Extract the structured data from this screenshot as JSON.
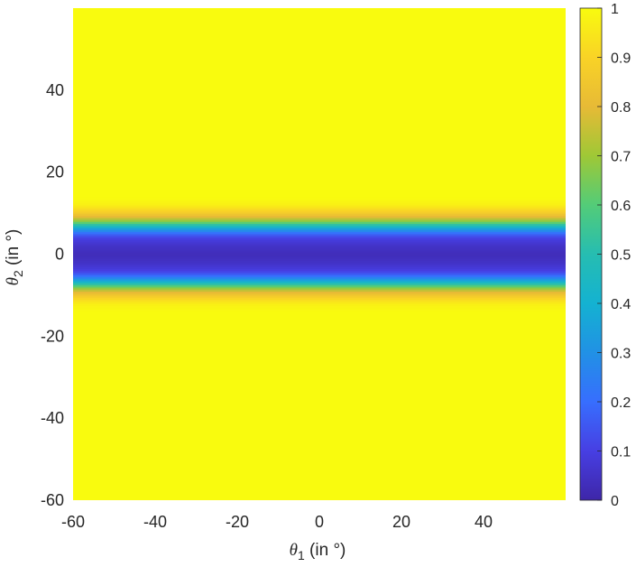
{
  "chart_data": {
    "type": "heatmap",
    "xlabel": {
      "symbol": "θ",
      "sub": "1",
      "unit": " (in °)"
    },
    "ylabel": {
      "symbol": "θ",
      "sub": "2",
      "unit": " (in °)"
    },
    "xlim": [
      -60,
      60
    ],
    "ylim": [
      -60,
      60
    ],
    "xticks": [
      -60,
      -40,
      -20,
      0,
      20,
      40
    ],
    "yticks": [
      -60,
      -40,
      -20,
      0,
      20,
      40
    ],
    "colorbar": {
      "range": [
        0,
        1
      ],
      "ticks": [
        0,
        0.1,
        0.2,
        0.3,
        0.4,
        0.5,
        0.6,
        0.7,
        0.8,
        0.9,
        1
      ],
      "colormap": "parula"
    },
    "profile_along_theta2": {
      "theta2": [
        -60,
        -14,
        -12,
        -11,
        -10,
        -9,
        -8,
        -7,
        -6,
        -5,
        -4,
        -2,
        0,
        2,
        4,
        5,
        6,
        7,
        8,
        9,
        10,
        11,
        12,
        14,
        60
      ],
      "value": [
        1,
        1,
        0.97,
        0.92,
        0.86,
        0.78,
        0.65,
        0.48,
        0.3,
        0.18,
        0.1,
        0.05,
        0.03,
        0.05,
        0.1,
        0.18,
        0.3,
        0.48,
        0.65,
        0.78,
        0.86,
        0.92,
        0.97,
        1,
        1
      ]
    },
    "grid": false
  }
}
